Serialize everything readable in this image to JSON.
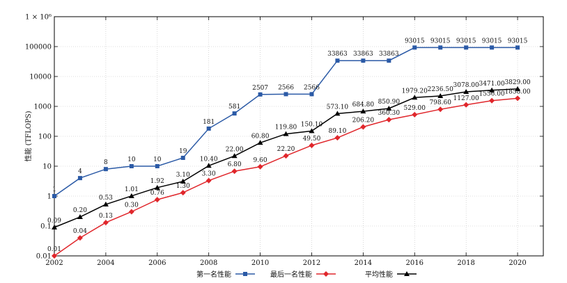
{
  "chart_data": {
    "type": "line",
    "ylabel": "性能 (TFLOPS)",
    "xlabel": "",
    "x": [
      2002,
      2003,
      2004,
      2005,
      2006,
      2007,
      2008,
      2009,
      2010,
      2011,
      2012,
      2013,
      2014,
      2015,
      2016,
      2017,
      2018,
      2019,
      2020
    ],
    "x_range": [
      2002,
      2021
    ],
    "x_ticks": [
      2002,
      2004,
      2006,
      2008,
      2010,
      2012,
      2014,
      2016,
      2018,
      2020
    ],
    "y_scale": "log",
    "y_range": [
      0.01,
      1000000
    ],
    "y_ticks": [
      0.01,
      0.1,
      1,
      10,
      100,
      1000,
      10000,
      100000,
      1000000
    ],
    "y_tick_labels": [
      "0.01",
      "0.1",
      "1",
      "10",
      "100",
      "1000",
      "10000",
      "100000",
      "1 × 10⁶"
    ],
    "grid": true,
    "legend_position": "bottom-center",
    "series": [
      {
        "name": "第一名性能",
        "color": "#2b5aa6",
        "marker": "square",
        "values": [
          1,
          4,
          8,
          10,
          10,
          19,
          181,
          581,
          2507,
          2566,
          2566,
          33863,
          33863,
          33863,
          93015,
          93015,
          93015,
          93015,
          93015
        ],
        "labels": [
          "1",
          "4",
          "8",
          "10",
          "10",
          "19",
          "181",
          "581",
          "2507",
          "2566",
          "2566",
          "33863",
          "33863",
          "33863",
          "93015",
          "93015",
          "93015",
          "93015",
          "93015"
        ]
      },
      {
        "name": "最后一名性能",
        "color": "#e0262b",
        "marker": "diamond",
        "values": [
          0.01,
          0.04,
          0.13,
          0.3,
          0.76,
          1.3,
          3.3,
          6.8,
          9.6,
          22.2,
          49.5,
          89.1,
          206.2,
          360.3,
          529.0,
          798.6,
          1127.0,
          1556.0,
          1858.0
        ],
        "labels": [
          "0.01",
          "0.04",
          "0.13",
          "0.30",
          "0.76",
          "1.30",
          "3.30",
          "6.80",
          "9.60",
          "22.20",
          "49.50",
          "89.10",
          "206.20",
          "360.30",
          "529.00",
          "798.60",
          "1127.00",
          "1556.00",
          "1858.00"
        ]
      },
      {
        "name": "平均性能",
        "color": "#000000",
        "marker": "triangle",
        "values": [
          0.09,
          0.2,
          0.53,
          1.01,
          1.92,
          3.1,
          10.4,
          22.0,
          60.8,
          119.8,
          150.1,
          573.1,
          684.8,
          850.9,
          1979.2,
          2236.5,
          3078.0,
          3471.0,
          3829.0
        ],
        "labels": [
          "0.09",
          "0.20",
          "0.53",
          "1.01",
          "1.92",
          "3.10",
          "10.40",
          "22.00",
          "60.80",
          "119.80",
          "150.10",
          "573.10",
          "684.80",
          "850.90",
          "1979.20",
          "2236.50",
          "3078.00",
          "3471.00",
          "3829.00"
        ]
      }
    ]
  }
}
